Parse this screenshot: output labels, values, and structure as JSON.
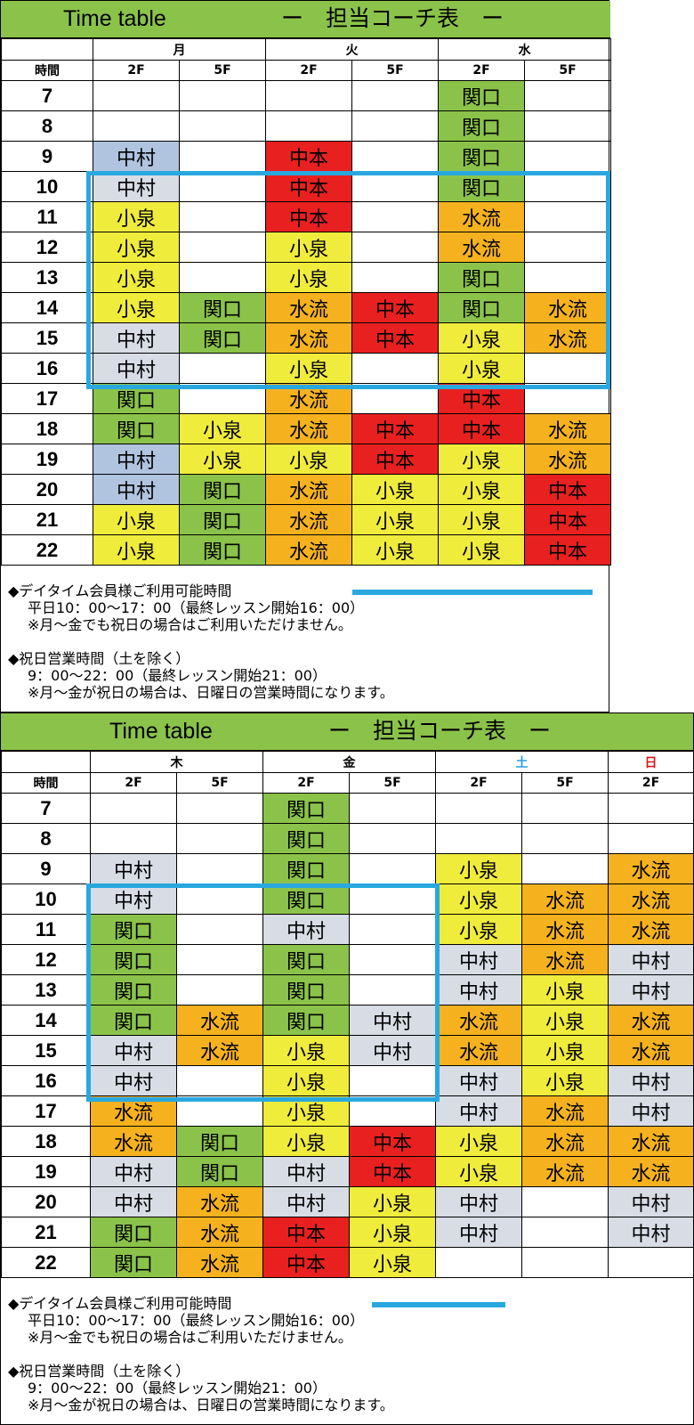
{
  "top": {
    "title_left": "Time table",
    "title_right": "ー　担当コーチ表　ー",
    "days": [
      "月",
      "火",
      "水"
    ],
    "floors": [
      "2F",
      "5F",
      "2F",
      "5F",
      "2F",
      "5F"
    ],
    "time_header": "時間",
    "rows": [
      {
        "hour": "7",
        "cells": [
          "",
          "",
          "",
          "",
          "関口",
          ""
        ]
      },
      {
        "hour": "8",
        "cells": [
          "",
          "",
          "",
          "",
          "関口",
          ""
        ]
      },
      {
        "hour": "9",
        "cells": [
          "中村",
          "",
          "中本",
          "",
          "関口",
          ""
        ]
      },
      {
        "hour": "10",
        "cells": [
          "中村",
          "",
          "中本",
          "",
          "関口",
          ""
        ]
      },
      {
        "hour": "11",
        "cells": [
          "小泉",
          "",
          "中本",
          "",
          "水流",
          ""
        ]
      },
      {
        "hour": "12",
        "cells": [
          "小泉",
          "",
          "小泉",
          "",
          "水流",
          ""
        ]
      },
      {
        "hour": "13",
        "cells": [
          "小泉",
          "",
          "小泉",
          "",
          "関口",
          ""
        ]
      },
      {
        "hour": "14",
        "cells": [
          "小泉",
          "関口",
          "水流",
          "中本",
          "関口",
          "水流"
        ]
      },
      {
        "hour": "15",
        "cells": [
          "中村",
          "関口",
          "水流",
          "中本",
          "小泉",
          "水流"
        ]
      },
      {
        "hour": "16",
        "cells": [
          "中村",
          "",
          "小泉",
          "",
          "小泉",
          ""
        ]
      },
      {
        "hour": "17",
        "cells": [
          "関口",
          "",
          "水流",
          "",
          "中本",
          ""
        ]
      },
      {
        "hour": "18",
        "cells": [
          "関口",
          "小泉",
          "水流",
          "中本",
          "中本",
          "水流"
        ]
      },
      {
        "hour": "19",
        "cells": [
          "中村",
          "小泉",
          "小泉",
          "中本",
          "小泉",
          "水流"
        ]
      },
      {
        "hour": "20",
        "cells": [
          "中村",
          "関口",
          "水流",
          "小泉",
          "小泉",
          "中本"
        ]
      },
      {
        "hour": "21",
        "cells": [
          "小泉",
          "関口",
          "水流",
          "小泉",
          "小泉",
          "中本"
        ]
      },
      {
        "hour": "22",
        "cells": [
          "小泉",
          "関口",
          "水流",
          "小泉",
          "小泉",
          "中本"
        ]
      }
    ],
    "color_variants": [
      [
        "a",
        "",
        "",
        "",
        "",
        ""
      ],
      [
        "a",
        "",
        "",
        "",
        "",
        ""
      ],
      [
        "a",
        "",
        "",
        "",
        "",
        ""
      ],
      [
        "b",
        "",
        "",
        "",
        "",
        ""
      ],
      [
        "",
        "",
        "",
        "",
        "",
        ""
      ],
      [
        "",
        "",
        "",
        "",
        "",
        ""
      ],
      [
        "",
        "",
        "",
        "",
        "",
        ""
      ],
      [
        "",
        "",
        "",
        "",
        "",
        ""
      ],
      [
        "b",
        "",
        "",
        "",
        "",
        ""
      ],
      [
        "b",
        "",
        "",
        "",
        "",
        ""
      ],
      [
        "",
        "",
        "",
        "",
        "",
        ""
      ],
      [
        "",
        "",
        "",
        "",
        "",
        ""
      ],
      [
        "a",
        "",
        "",
        "",
        "",
        ""
      ],
      [
        "a",
        "",
        "",
        "",
        "",
        ""
      ],
      [
        "",
        "",
        "",
        "",
        "",
        ""
      ],
      [
        "",
        "",
        "",
        "",
        "",
        ""
      ]
    ],
    "notes": {
      "daytime_heading": "◆デイタイム会員様ご利用可能時間",
      "daytime_hours": "平日10：00〜17：00（最終レッスン開始16：00）",
      "daytime_note": "※月〜金でも祝日の場合はご利用いただけません。",
      "holiday_heading": "◆祝日営業時間（土を除く）",
      "holiday_hours": "9：00〜22：00（最終レッスン開始21：00）",
      "holiday_note": "※月〜金が祝日の場合は、日曜日の営業時間になります。"
    }
  },
  "bottom": {
    "title_left": "Time table",
    "title_right": "ー　担当コーチ表　ー",
    "days": [
      "木",
      "金",
      "土",
      "日"
    ],
    "floors": [
      "2F",
      "5F",
      "2F",
      "5F",
      "2F",
      "5F",
      "2F"
    ],
    "time_header": "時間",
    "rows": [
      {
        "hour": "7",
        "cells": [
          "",
          "",
          "関口",
          "",
          "",
          "",
          ""
        ]
      },
      {
        "hour": "8",
        "cells": [
          "",
          "",
          "関口",
          "",
          "",
          "",
          ""
        ]
      },
      {
        "hour": "9",
        "cells": [
          "中村",
          "",
          "関口",
          "",
          "小泉",
          "",
          "水流"
        ]
      },
      {
        "hour": "10",
        "cells": [
          "中村",
          "",
          "関口",
          "",
          "小泉",
          "水流",
          "水流"
        ]
      },
      {
        "hour": "11",
        "cells": [
          "関口",
          "",
          "中村",
          "",
          "小泉",
          "水流",
          "水流"
        ]
      },
      {
        "hour": "12",
        "cells": [
          "関口",
          "",
          "関口",
          "",
          "中村",
          "水流",
          "中村"
        ]
      },
      {
        "hour": "13",
        "cells": [
          "関口",
          "",
          "関口",
          "",
          "中村",
          "小泉",
          "中村"
        ]
      },
      {
        "hour": "14",
        "cells": [
          "関口",
          "水流",
          "関口",
          "中村",
          "水流",
          "小泉",
          "水流"
        ]
      },
      {
        "hour": "15",
        "cells": [
          "中村",
          "水流",
          "小泉",
          "中村",
          "水流",
          "小泉",
          "水流"
        ]
      },
      {
        "hour": "16",
        "cells": [
          "中村",
          "",
          "小泉",
          "",
          "中村",
          "小泉",
          "中村"
        ]
      },
      {
        "hour": "17",
        "cells": [
          "水流",
          "",
          "小泉",
          "",
          "中村",
          "水流",
          "中村"
        ]
      },
      {
        "hour": "18",
        "cells": [
          "水流",
          "関口",
          "小泉",
          "中本",
          "小泉",
          "水流",
          "水流"
        ]
      },
      {
        "hour": "19",
        "cells": [
          "中村",
          "関口",
          "中村",
          "中本",
          "小泉",
          "水流",
          "水流"
        ]
      },
      {
        "hour": "20",
        "cells": [
          "中村",
          "水流",
          "中村",
          "小泉",
          "中村",
          "",
          "中村"
        ]
      },
      {
        "hour": "21",
        "cells": [
          "関口",
          "水流",
          "中本",
          "小泉",
          "中村",
          "",
          "中村"
        ]
      },
      {
        "hour": "22",
        "cells": [
          "関口",
          "水流",
          "中本",
          "小泉",
          "",
          "",
          ""
        ]
      }
    ],
    "notes": {
      "daytime_heading": "◆デイタイム会員様ご利用可能時間",
      "daytime_hours": "平日10：00〜17：00（最終レッスン開始16：00）",
      "daytime_note": "※月〜金でも祝日の場合はご利用いただけません。",
      "holiday_heading": "◆祝日営業時間（土を除く）",
      "holiday_hours": "9：00〜22：00（最終レッスン開始21：00）",
      "holiday_note": "※月〜金が祝日の場合は、日曜日の営業時間になります。"
    }
  },
  "colors": {
    "関口": "#8bc34a",
    "中村_a": "#b0c4e0",
    "中村_b": "#d7dce5",
    "中本": "#e8201f",
    "小泉": "#f0ec3c",
    "水流": "#f5b21e",
    "title_bar": "#8bc34a",
    "daytime_frame": "#29a8e0",
    "saturday": "#2b9fd8",
    "sunday": "#d7191c"
  }
}
